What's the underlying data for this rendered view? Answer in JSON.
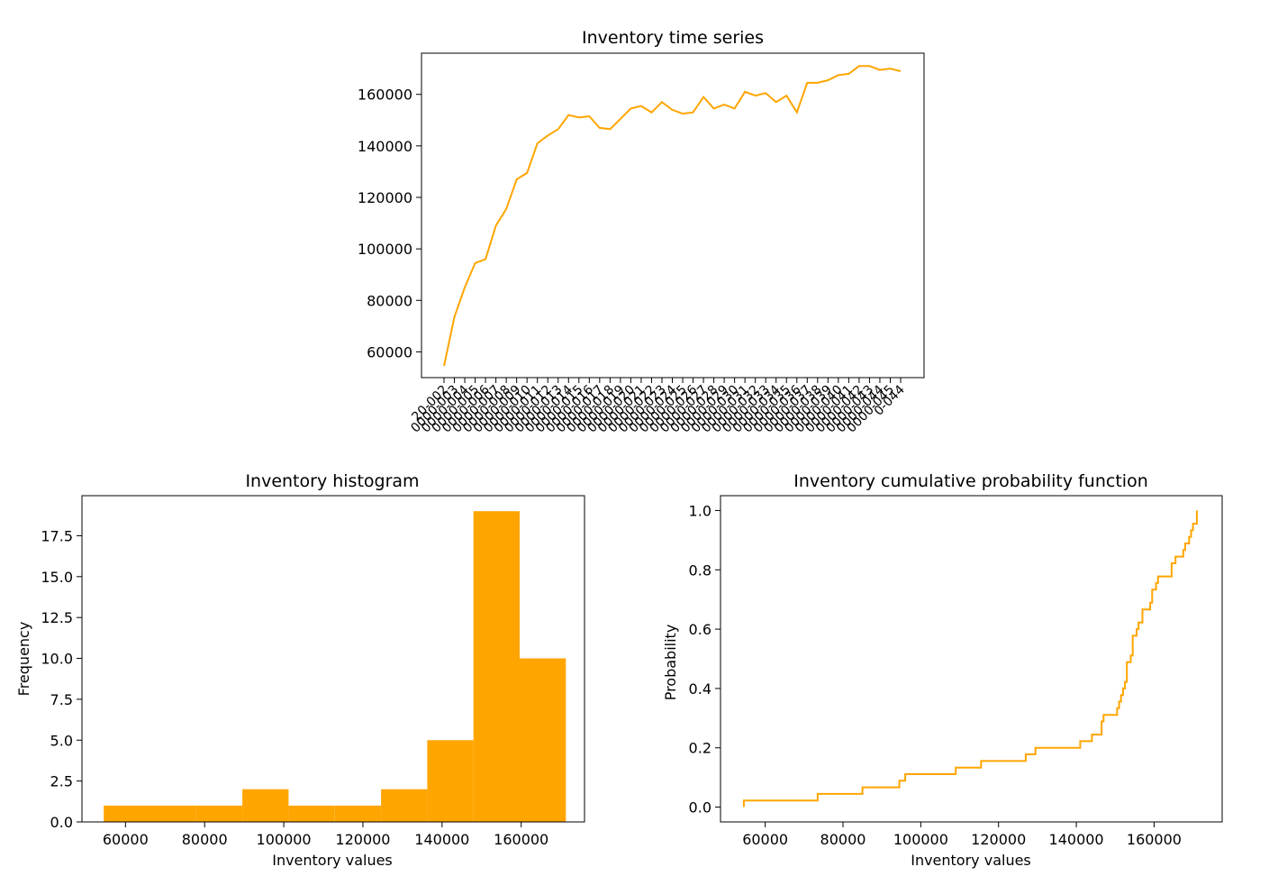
{
  "colors": {
    "series": "#ffa500",
    "axis": "#000000",
    "background": "#ffffff"
  },
  "chart_data": [
    {
      "id": "timeseries",
      "type": "line",
      "title": "Inventory time series",
      "xlabel": "",
      "ylabel": "",
      "ylim": [
        50000,
        176000
      ],
      "yticks": [
        60000,
        80000,
        100000,
        120000,
        140000,
        160000
      ],
      "x_tick_labels_note": "44 overlapping rotated date-like tick labels (illegible), first reads '…20-002', last reads '…0-044'",
      "x_tick_first": "20-002",
      "x_tick_last": "0-044",
      "x": [
        1,
        2,
        3,
        4,
        5,
        6,
        7,
        8,
        9,
        10,
        11,
        12,
        13,
        14,
        15,
        16,
        17,
        18,
        19,
        20,
        21,
        22,
        23,
        24,
        25,
        26,
        27,
        28,
        29,
        30,
        31,
        32,
        33,
        34,
        35,
        36,
        37,
        38,
        39,
        40,
        41,
        42,
        43,
        44,
        45
      ],
      "values": [
        54500,
        73500,
        85000,
        94500,
        96000,
        109000,
        115500,
        127000,
        129500,
        141000,
        144000,
        146500,
        152000,
        151000,
        151500,
        147000,
        146500,
        150500,
        154500,
        155500,
        153000,
        157000,
        154000,
        152500,
        153000,
        159000,
        154500,
        156000,
        154500,
        161000,
        159500,
        160500,
        157000,
        159500,
        153000,
        164500,
        164500,
        165500,
        167500,
        168000,
        171000,
        171000,
        169500,
        170000,
        169000
      ]
    },
    {
      "id": "histogram",
      "type": "bar",
      "title": "Inventory histogram",
      "xlabel": "Inventory values",
      "ylabel": "Frequency",
      "xlim": [
        49000,
        176000
      ],
      "ylim": [
        0,
        19.95
      ],
      "xticks": [
        60000,
        80000,
        100000,
        120000,
        140000,
        160000
      ],
      "yticks": [
        0.0,
        2.5,
        5.0,
        7.5,
        10.0,
        12.5,
        15.0,
        17.5
      ],
      "bin_edges": [
        54500,
        66180,
        77860,
        89540,
        101220,
        112900,
        124580,
        136260,
        147940,
        159620,
        171300
      ],
      "values": [
        1,
        1,
        1,
        2,
        1,
        1,
        2,
        5,
        19,
        10
      ]
    },
    {
      "id": "cdf",
      "type": "line",
      "title": "Inventory cumulative probability function",
      "xlabel": "Inventory values",
      "ylabel": "Probability",
      "xlim": [
        48500,
        177500
      ],
      "ylim": [
        -0.05,
        1.05
      ],
      "xticks": [
        60000,
        80000,
        100000,
        120000,
        140000,
        160000
      ],
      "yticks": [
        0.0,
        0.2,
        0.4,
        0.6,
        0.8,
        1.0
      ],
      "values": [
        54500,
        73500,
        85000,
        94500,
        96000,
        109000,
        115500,
        127000,
        129500,
        141000,
        144000,
        146500,
        146500,
        147000,
        150500,
        151000,
        151500,
        152000,
        152500,
        153000,
        153000,
        153000,
        154000,
        154500,
        154500,
        154500,
        155500,
        156000,
        157000,
        157000,
        159000,
        159500,
        159500,
        160500,
        161000,
        164500,
        164500,
        165500,
        167500,
        168000,
        169000,
        169500,
        170000,
        171000,
        171000
      ]
    }
  ]
}
